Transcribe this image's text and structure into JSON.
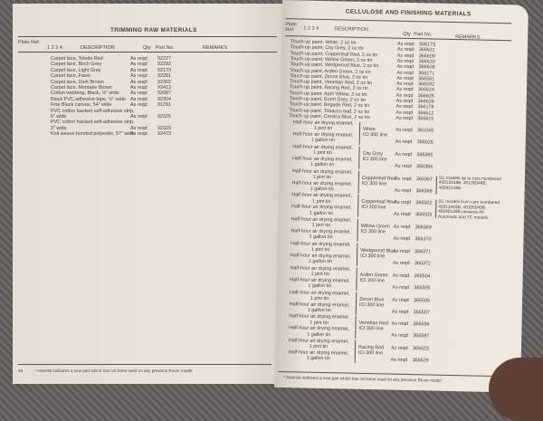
{
  "left_page": {
    "title": "TRIMMING RAW MATERIALS",
    "header": {
      "plate_ref": "Plate Ref.",
      "cols": "1 2 3 4",
      "description": "DESCRIPTION",
      "qty": "Qty",
      "part_no": "Part No.",
      "remarks": "REMARKS"
    },
    "rows": [
      {
        "desc": "Carpet lace, Toledo Red",
        "qty": "As reqd",
        "part": "92227"
      },
      {
        "desc": "Carpet lace, Birch Grey",
        "qty": "As reqd",
        "part": "92292"
      },
      {
        "desc": "Carpet lace, Light Grey",
        "qty": "As reqd",
        "part": "92173"
      },
      {
        "desc": "Carpet lace, Fawn",
        "qty": "As reqd",
        "part": "92281"
      },
      {
        "desc": "Carpet lace, Dark Brown",
        "qty": "As reqd",
        "part": "92302"
      },
      {
        "desc": "Carpet lace, Montake Brown",
        "qty": "As reqd",
        "part": "92413"
      },
      {
        "desc": "Cotton webbing, Black, ½\" wide",
        "qty": "As reqd",
        "part": "92087"
      },
      {
        "desc": "Black PVC adhesive tape, ½\" wide",
        "qty": "As reqd",
        "part": "92304"
      },
      {
        "desc": "Fine Black canvas, 54\" wide",
        "qty": "As reqd",
        "part": "91291"
      },
      {
        "desc": "PVC cotton backed self-adhesive strip,",
        "qty": "",
        "part": ""
      },
      {
        "desc": "    6\" wide",
        "qty": "As reqd",
        "part": "92326"
      },
      {
        "desc": "PVC cotton backed self-adhesive strip,",
        "qty": "",
        "part": ""
      },
      {
        "desc": "    3\" wide",
        "qty": "As reqd",
        "part": "92329"
      },
      {
        "desc": "Knit weave bonded polyester, 57\" wide",
        "qty": "As reqd",
        "part": "92473"
      }
    ],
    "page_number": "48",
    "footnote": "* Asterisk indicates a new part which has not been used on any previous Rover model"
  },
  "right_page": {
    "title": "CELLULOSE AND FINISHING MATERIALS",
    "header": {
      "plate_ref": "Plate Ref.",
      "cols": "1 2 3 4",
      "description": "DESCRIPTION",
      "qty": "Qty",
      "part_no": "Part No.",
      "remarks": "REMARKS"
    },
    "touchup_rows": [
      {
        "desc": "Touch-up paint, White, 2 oz tin",
        "qty": "As reqd",
        "part": "366173"
      },
      {
        "desc": "Touch-up paint, City Grey, 2 oz tin",
        "qty": "As reqd",
        "part": "366611"
      },
      {
        "desc": "Touch-up paint, Copperleaf Red, 2 oz tin",
        "qty": "As reqd",
        "part": "366609"
      },
      {
        "desc": "Touch-up paint, Willow Green, 2 oz tin",
        "qty": "As reqd",
        "part": "366610"
      },
      {
        "desc": "Touch-up paint, Wedgwood Blue, 2 oz tin",
        "qty": "As reqd",
        "part": "366608"
      },
      {
        "desc": "Touch-up paint, Arden Green, 2 oz tin",
        "qty": "As reqd",
        "part": "366171"
      },
      {
        "desc": "Touch-up paint, Zircon Blue, 2 oz tin",
        "qty": "As reqd",
        "part": "366561"
      },
      {
        "desc": "Touch-up paint, Venetian Red, 2 oz tin",
        "qty": "As reqd",
        "part": "366592"
      },
      {
        "desc": "Touch-up paint, Racing Red, 2 oz tin",
        "qty": "As reqd",
        "part": "366624"
      },
      {
        "desc": "Touch-up paint, April Yellow, 2 oz tin",
        "qty": "As reqd",
        "part": "366625"
      },
      {
        "desc": "Touch-up paint, Burnt Grey, 2 oz tin",
        "qty": "As reqd",
        "part": "366626"
      },
      {
        "desc": "Touch-up paint, Brigade Red, 2 oz tin",
        "qty": "As reqd",
        "part": "366176"
      },
      {
        "desc": "Touch-up paint, Tobacco leaf, 2 oz tin",
        "qty": "As reqd",
        "part": "366612"
      },
      {
        "desc": "Touch-up paint, Corsica Blue, 2 oz tin",
        "qty": "As reqd",
        "part": "366615"
      }
    ],
    "enamel_pint": "Half-hour air drying enamel,\n1 pint tin",
    "enamel_gallon": "Half-hour air drying enamel,\n1 gallon tin",
    "line": "ICI 300 line",
    "groups": [
      {
        "colour": "White",
        "qty": "As reqd",
        "pint": "361049",
        "gallon": "366026",
        "remark": ""
      },
      {
        "colour": "City Grey",
        "qty": "As reqd",
        "pint": "366365",
        "gallon": "366366",
        "remark": ""
      },
      {
        "colour": "Copperleaf Red",
        "qty": "As reqd",
        "pint": "366367",
        "gallon": "366368",
        "remark": "SC models up to cars numbered 40013418B, 40105048B, 40040148B"
      },
      {
        "colour": "Copperleaf Red",
        "qty": "As reqd",
        "pint": "366502",
        "gallon": "366503",
        "remark": "SC models from cars numbered 40013419B, 40105049B, 40040149B onwards All Automatic and TC models"
      },
      {
        "colour": "Willow Green",
        "qty": "As reqd",
        "pint": "366369",
        "gallon": "366370",
        "remark": ""
      },
      {
        "colour": "Wedgwood Blue",
        "qty": "As reqd",
        "pint": "366371",
        "gallon": "366372",
        "remark": ""
      },
      {
        "colour": "Arden Green",
        "qty": "As reqd",
        "pint": "366504",
        "gallon": "366505",
        "remark": ""
      },
      {
        "colour": "Zircon Blue",
        "qty": "As reqd",
        "pint": "366506",
        "gallon": "366507",
        "remark": ""
      },
      {
        "colour": "Venetian Red",
        "qty": "As reqd",
        "pint": "366586",
        "gallon": "366587",
        "remark": ""
      },
      {
        "colour": "Racing Red",
        "qty": "As reqd",
        "pint": "366623",
        "gallon": "366629",
        "remark": ""
      }
    ],
    "page_number": "49",
    "footnote": "* Asterisk indicates a new part which has not been used on any previous Rover model"
  }
}
